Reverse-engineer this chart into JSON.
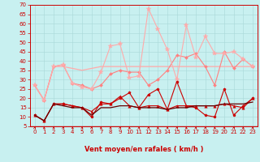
{
  "title": "",
  "xlabel": "Vent moyen/en rafales ( km/h )",
  "bg_color": "#c8f0f0",
  "grid_color": "#a8d8d8",
  "xlim": [
    -0.5,
    23.5
  ],
  "ylim": [
    5,
    70
  ],
  "yticks": [
    5,
    10,
    15,
    20,
    25,
    30,
    35,
    40,
    45,
    50,
    55,
    60,
    65,
    70
  ],
  "xticks": [
    0,
    1,
    2,
    3,
    4,
    5,
    6,
    7,
    8,
    9,
    10,
    11,
    12,
    13,
    14,
    15,
    16,
    17,
    18,
    19,
    20,
    21,
    22,
    23
  ],
  "series": [
    {
      "data": [
        11,
        8,
        17,
        17,
        16,
        15,
        10,
        18,
        17,
        20,
        23,
        15,
        22,
        25,
        14,
        29,
        16,
        15,
        11,
        10,
        25,
        11,
        16,
        20
      ],
      "color": "#cc0000",
      "linewidth": 0.8,
      "marker": "p",
      "markersize": 2.5,
      "alpha": 1.0,
      "zorder": 4
    },
    {
      "data": [
        11,
        8,
        17,
        16,
        15,
        15,
        11,
        15,
        15,
        16,
        16,
        15,
        15,
        15,
        14,
        15,
        15,
        16,
        16,
        16,
        17,
        17,
        17,
        18
      ],
      "color": "#660000",
      "linewidth": 0.9,
      "marker": null,
      "markersize": 0,
      "alpha": 1.0,
      "zorder": 5
    },
    {
      "data": [
        11,
        8,
        17,
        17,
        16,
        15,
        13,
        17,
        17,
        21,
        16,
        15,
        16,
        16,
        14,
        16,
        16,
        16,
        16,
        16,
        17,
        16,
        15,
        20
      ],
      "color": "#cc0000",
      "linewidth": 0.8,
      "marker": "^",
      "markersize": 2.5,
      "alpha": 1.0,
      "zorder": 4
    },
    {
      "data": [
        27,
        19,
        37,
        38,
        28,
        27,
        25,
        27,
        33,
        35,
        34,
        34,
        27,
        30,
        35,
        43,
        42,
        44,
        37,
        27,
        45,
        36,
        41,
        37
      ],
      "color": "#ff8080",
      "linewidth": 0.8,
      "marker": "D",
      "markersize": 2.0,
      "alpha": 1.0,
      "zorder": 3
    },
    {
      "data": [
        27,
        19,
        37,
        37,
        36,
        35,
        36,
        37,
        37,
        37,
        37,
        37,
        37,
        37,
        37,
        37,
        37,
        37,
        37,
        37,
        37,
        37,
        37,
        37
      ],
      "color": "#ffaaaa",
      "linewidth": 0.9,
      "marker": null,
      "markersize": 0,
      "alpha": 1.0,
      "zorder": 2
    },
    {
      "data": [
        27,
        19,
        37,
        38,
        28,
        26,
        25,
        34,
        48,
        49,
        31,
        32,
        68,
        57,
        46,
        30,
        59,
        42,
        53,
        44,
        44,
        45,
        41,
        37
      ],
      "color": "#ffaaaa",
      "linewidth": 0.8,
      "marker": "*",
      "markersize": 4.0,
      "alpha": 1.0,
      "zorder": 3
    }
  ],
  "arrow_color": "#cc0000",
  "label_color": "#cc0000",
  "tick_color": "#cc0000",
  "xlabel_color": "#cc0000",
  "tick_fontsize": 5,
  "xlabel_fontsize": 6
}
